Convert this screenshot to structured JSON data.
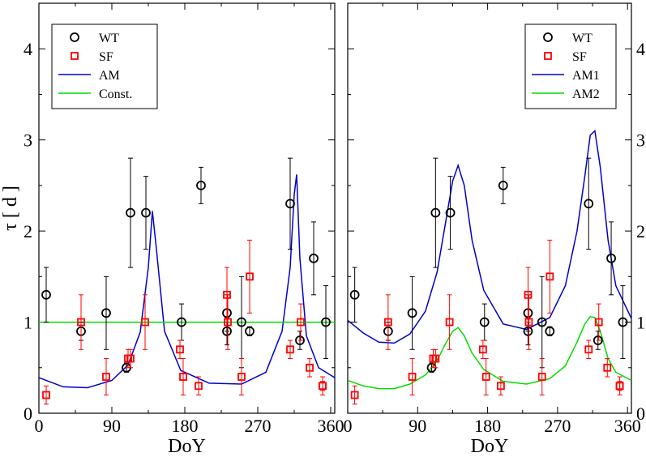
{
  "colors": {
    "WT": "#000000",
    "SF": "#ff0000",
    "AM": "#0000cc",
    "green": "#00dd00"
  },
  "axes": {
    "xlabel": "DoY",
    "ylabel": "τ [ d ]",
    "xlim": [
      0,
      365
    ],
    "ylim": [
      0,
      4.5
    ],
    "xticks": [
      0,
      90,
      180,
      270,
      360
    ],
    "yticks": [
      0,
      1,
      2,
      3,
      4
    ]
  },
  "wt_points": [
    {
      "x": 9,
      "y": 1.3,
      "lo": 1.0,
      "hi": 1.6
    },
    {
      "x": 52,
      "y": 0.9,
      "lo": 0.8,
      "hi": 1.0
    },
    {
      "x": 83,
      "y": 1.1,
      "lo": 0.7,
      "hi": 1.5
    },
    {
      "x": 108,
      "y": 0.5,
      "lo": 0.45,
      "hi": 0.55
    },
    {
      "x": 113,
      "y": 2.2,
      "lo": 1.6,
      "hi": 2.8
    },
    {
      "x": 132,
      "y": 2.2,
      "lo": 1.8,
      "hi": 2.6
    },
    {
      "x": 176,
      "y": 1.0,
      "lo": 0.8,
      "hi": 1.2
    },
    {
      "x": 200,
      "y": 2.5,
      "lo": 2.3,
      "hi": 2.7
    },
    {
      "x": 232,
      "y": 1.1,
      "lo": 0.9,
      "hi": 1.3
    },
    {
      "x": 232,
      "y": 0.9,
      "lo": 0.75,
      "hi": 1.05
    },
    {
      "x": 250,
      "y": 1.0,
      "lo": 0.5,
      "hi": 1.5
    },
    {
      "x": 260,
      "y": 0.9,
      "lo": 0.85,
      "hi": 0.95
    },
    {
      "x": 310,
      "y": 2.3,
      "lo": 1.8,
      "hi": 2.8
    },
    {
      "x": 322,
      "y": 0.8,
      "lo": 0.7,
      "hi": 0.9
    },
    {
      "x": 339,
      "y": 1.7,
      "lo": 1.3,
      "hi": 2.1
    },
    {
      "x": 354,
      "y": 1.0,
      "lo": 0.6,
      "hi": 1.4
    }
  ],
  "sf_points": [
    {
      "x": 9,
      "y": 0.2,
      "lo": 0.1,
      "hi": 0.3
    },
    {
      "x": 52,
      "y": 1.0,
      "lo": 0.7,
      "hi": 1.3
    },
    {
      "x": 83,
      "y": 0.4,
      "lo": 0.2,
      "hi": 0.6
    },
    {
      "x": 110,
      "y": 0.6,
      "lo": 0.5,
      "hi": 0.7
    },
    {
      "x": 113,
      "y": 0.6,
      "lo": 0.5,
      "hi": 0.7
    },
    {
      "x": 131,
      "y": 1.0,
      "lo": 0.7,
      "hi": 1.3
    },
    {
      "x": 174,
      "y": 0.7,
      "lo": 0.6,
      "hi": 0.8
    },
    {
      "x": 178,
      "y": 0.4,
      "lo": 0.2,
      "hi": 0.6
    },
    {
      "x": 197,
      "y": 0.3,
      "lo": 0.2,
      "hi": 0.4
    },
    {
      "x": 232,
      "y": 1.3,
      "lo": 1.0,
      "hi": 1.6
    },
    {
      "x": 233,
      "y": 1.0,
      "lo": 0.7,
      "hi": 1.3
    },
    {
      "x": 250,
      "y": 0.4,
      "lo": 0.2,
      "hi": 0.6
    },
    {
      "x": 260,
      "y": 1.5,
      "lo": 1.1,
      "hi": 1.9
    },
    {
      "x": 310,
      "y": 0.7,
      "lo": 0.6,
      "hi": 0.8
    },
    {
      "x": 323,
      "y": 1.0,
      "lo": 0.8,
      "hi": 1.2
    },
    {
      "x": 334,
      "y": 0.5,
      "lo": 0.4,
      "hi": 0.6
    },
    {
      "x": 350,
      "y": 0.3,
      "lo": 0.2,
      "hi": 0.4
    },
    {
      "x": 350,
      "y": 0.3,
      "lo": 0.25,
      "hi": 0.35
    }
  ],
  "chart_data": [
    {
      "type": "scatter",
      "xlabel": "DoY",
      "ylabel": "τ [ d ]",
      "xlim": [
        0,
        365
      ],
      "ylim": [
        0,
        4.5
      ],
      "legend": "top-left",
      "series": [
        {
          "name": "WT",
          "kind": "points",
          "color": "#000000"
        },
        {
          "name": "SF",
          "kind": "points",
          "color": "#ff0000"
        },
        {
          "name": "AM",
          "kind": "line",
          "color": "#0000cc",
          "x": [
            0,
            30,
            60,
            90,
            110,
            125,
            135,
            140,
            145,
            155,
            175,
            210,
            250,
            280,
            300,
            310,
            315,
            318,
            322,
            330,
            345,
            365
          ],
          "y": [
            0.39,
            0.29,
            0.28,
            0.36,
            0.53,
            0.89,
            1.6,
            2.22,
            1.8,
            0.9,
            0.47,
            0.33,
            0.32,
            0.45,
            0.9,
            1.6,
            2.4,
            2.62,
            1.7,
            0.85,
            0.5,
            0.39
          ]
        },
        {
          "name": "Const.",
          "kind": "line",
          "color": "#00dd00",
          "x": [
            0,
            365
          ],
          "y": [
            1.0,
            1.0
          ]
        }
      ]
    },
    {
      "type": "scatter",
      "xlabel": "DoY",
      "ylabel": "",
      "xlim": [
        0,
        365
      ],
      "ylim": [
        0,
        4.5
      ],
      "legend": "top-right",
      "series": [
        {
          "name": "WT",
          "kind": "points",
          "color": "#000000"
        },
        {
          "name": "SF",
          "kind": "points",
          "color": "#ff0000"
        },
        {
          "name": "AM1",
          "kind": "line",
          "color": "#0000cc",
          "x": [
            0,
            20,
            40,
            60,
            80,
            100,
            115,
            125,
            135,
            142,
            150,
            160,
            175,
            200,
            230,
            260,
            280,
            295,
            305,
            312,
            318,
            325,
            335,
            345,
            365
          ],
          "y": [
            1.02,
            0.88,
            0.78,
            0.77,
            0.87,
            1.12,
            1.55,
            2.05,
            2.55,
            2.72,
            2.5,
            1.9,
            1.35,
            0.98,
            0.92,
            1.05,
            1.4,
            2.0,
            2.6,
            3.05,
            3.1,
            2.7,
            1.9,
            1.4,
            1.04
          ]
        },
        {
          "name": "AM2",
          "kind": "line",
          "color": "#00dd00",
          "x": [
            0,
            20,
            40,
            60,
            80,
            100,
            115,
            125,
            135,
            142,
            150,
            160,
            175,
            200,
            230,
            260,
            280,
            295,
            305,
            312,
            318,
            325,
            335,
            345,
            365
          ],
          "y": [
            0.36,
            0.3,
            0.27,
            0.27,
            0.32,
            0.42,
            0.58,
            0.75,
            0.9,
            0.94,
            0.85,
            0.66,
            0.48,
            0.35,
            0.32,
            0.38,
            0.52,
            0.78,
            0.98,
            1.06,
            1.05,
            0.9,
            0.6,
            0.45,
            0.36
          ]
        }
      ]
    }
  ]
}
